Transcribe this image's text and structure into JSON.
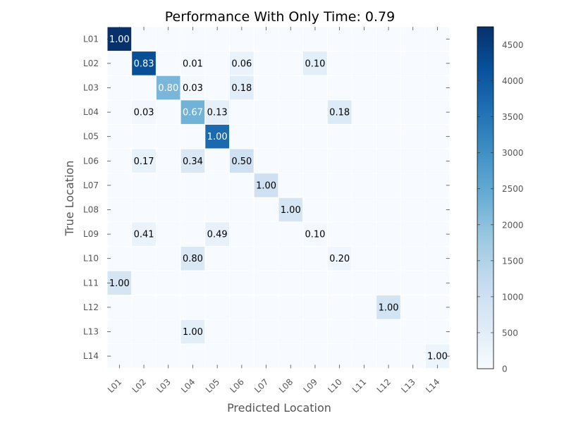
{
  "chart_data": {
    "type": "heatmap",
    "title": "Performance With Only Time: 0.79",
    "xlabel": "Predicted Location",
    "ylabel": "True Location",
    "x_categories": [
      "L01",
      "L02",
      "L03",
      "L04",
      "L05",
      "L06",
      "L07",
      "L08",
      "L09",
      "L10",
      "L11",
      "L12",
      "L13",
      "L14"
    ],
    "y_categories": [
      "L01",
      "L02",
      "L03",
      "L04",
      "L05",
      "L06",
      "L07",
      "L08",
      "L09",
      "L10",
      "L11",
      "L12",
      "L13",
      "L14"
    ],
    "colormap": "Blues",
    "colorbar": {
      "min": 0,
      "max": 4750,
      "ticks": [
        0,
        500,
        1000,
        1500,
        2000,
        2500,
        3000,
        3500,
        4000,
        4500
      ]
    },
    "cells": [
      {
        "row": 0,
        "col": 0,
        "label": "1.00",
        "count": 4750
      },
      {
        "row": 1,
        "col": 1,
        "label": "0.83",
        "count": 4200
      },
      {
        "row": 1,
        "col": 3,
        "label": "0.01",
        "count": 50
      },
      {
        "row": 1,
        "col": 5,
        "label": "0.06",
        "count": 300
      },
      {
        "row": 1,
        "col": 8,
        "label": "0.10",
        "count": 500
      },
      {
        "row": 2,
        "col": 2,
        "label": "0.80",
        "count": 2200
      },
      {
        "row": 2,
        "col": 3,
        "label": "0.03",
        "count": 90
      },
      {
        "row": 2,
        "col": 5,
        "label": "0.18",
        "count": 520
      },
      {
        "row": 3,
        "col": 1,
        "label": "0.03",
        "count": 150
      },
      {
        "row": 3,
        "col": 3,
        "label": "0.67",
        "count": 2300
      },
      {
        "row": 3,
        "col": 4,
        "label": "0.13",
        "count": 450
      },
      {
        "row": 3,
        "col": 9,
        "label": "0.18",
        "count": 620
      },
      {
        "row": 4,
        "col": 4,
        "label": "1.00",
        "count": 3700
      },
      {
        "row": 5,
        "col": 1,
        "label": "0.17",
        "count": 350
      },
      {
        "row": 5,
        "col": 3,
        "label": "0.34",
        "count": 700
      },
      {
        "row": 5,
        "col": 5,
        "label": "0.50",
        "count": 1000
      },
      {
        "row": 6,
        "col": 6,
        "label": "1.00",
        "count": 1000
      },
      {
        "row": 7,
        "col": 7,
        "label": "1.00",
        "count": 800
      },
      {
        "row": 8,
        "col": 1,
        "label": "0.41",
        "count": 300
      },
      {
        "row": 8,
        "col": 4,
        "label": "0.49",
        "count": 360
      },
      {
        "row": 8,
        "col": 8,
        "label": "0.10",
        "count": 80
      },
      {
        "row": 9,
        "col": 3,
        "label": "0.80",
        "count": 700
      },
      {
        "row": 9,
        "col": 9,
        "label": "0.20",
        "count": 170
      },
      {
        "row": 10,
        "col": 0,
        "label": "1.00",
        "count": 800
      },
      {
        "row": 11,
        "col": 11,
        "label": "1.00",
        "count": 900
      },
      {
        "row": 12,
        "col": 3,
        "label": "1.00",
        "count": 500
      },
      {
        "row": 13,
        "col": 13,
        "label": "1.00",
        "count": 250
      }
    ]
  }
}
